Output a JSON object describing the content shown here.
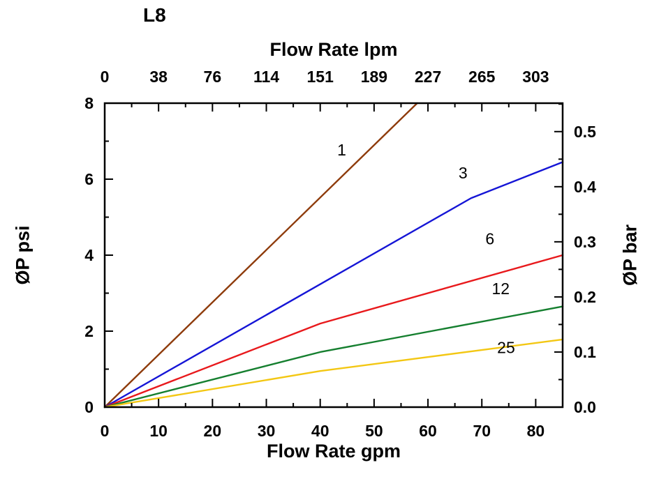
{
  "chart_data": {
    "type": "line",
    "title": "L8",
    "x_bottom": {
      "label": "Flow Rate gpm",
      "range": [
        0,
        85
      ],
      "major_ticks": [
        0,
        10,
        20,
        30,
        40,
        50,
        60,
        70,
        80
      ],
      "minor_ticks": [
        5,
        15,
        25,
        35,
        45,
        55,
        65,
        75
      ]
    },
    "x_top": {
      "label": "Flow Rate lpm",
      "tick_labels": [
        "0",
        "38",
        "76",
        "114",
        "151",
        "189",
        "227",
        "265",
        "303"
      ],
      "ticks_at_gpm": [
        0,
        10,
        20,
        30,
        40,
        50,
        60,
        70,
        80
      ],
      "minor_ticks_at_gpm": [
        5,
        15,
        25,
        35,
        45,
        55,
        65,
        75
      ]
    },
    "y_left": {
      "label": "ØP psi",
      "range": [
        0,
        8
      ],
      "major_ticks": [
        0,
        2,
        4,
        6,
        8
      ],
      "minor_ticks": [
        1,
        3,
        5,
        7
      ]
    },
    "y_right": {
      "label": "ØP bar",
      "tick_labels": [
        "0.0",
        "0.1",
        "0.2",
        "0.3",
        "0.4",
        "0.5"
      ],
      "major_ticks_bar": [
        0,
        0.1,
        0.2,
        0.3,
        0.4,
        0.5
      ],
      "minor_ticks_bar": [
        0.05,
        0.15,
        0.25,
        0.35,
        0.45,
        0.55
      ],
      "psi_per_bar": 14.5038
    },
    "series": [
      {
        "name": "1",
        "color": "#8E3B0B",
        "points": [
          [
            0,
            0
          ],
          [
            58,
            8
          ]
        ],
        "label_pos": [
          44,
          6.62
        ]
      },
      {
        "name": "3",
        "color": "#1515D6",
        "points": [
          [
            0,
            0
          ],
          [
            68,
            5.5
          ],
          [
            85,
            6.45
          ]
        ],
        "label_pos": [
          66.5,
          6.02
        ]
      },
      {
        "name": "6",
        "color": "#E8191C",
        "points": [
          [
            0,
            0
          ],
          [
            40,
            2.2
          ],
          [
            85,
            4.0
          ]
        ],
        "label_pos": [
          71.5,
          4.28
        ]
      },
      {
        "name": "12",
        "color": "#157F2F",
        "points": [
          [
            0,
            0
          ],
          [
            40,
            1.45
          ],
          [
            85,
            2.65
          ]
        ],
        "label_pos": [
          73.5,
          2.97
        ]
      },
      {
        "name": "25",
        "color": "#F3C713",
        "points": [
          [
            0,
            0
          ],
          [
            40,
            0.95
          ],
          [
            85,
            1.78
          ]
        ],
        "label_pos": [
          74.5,
          1.42
        ]
      }
    ]
  }
}
